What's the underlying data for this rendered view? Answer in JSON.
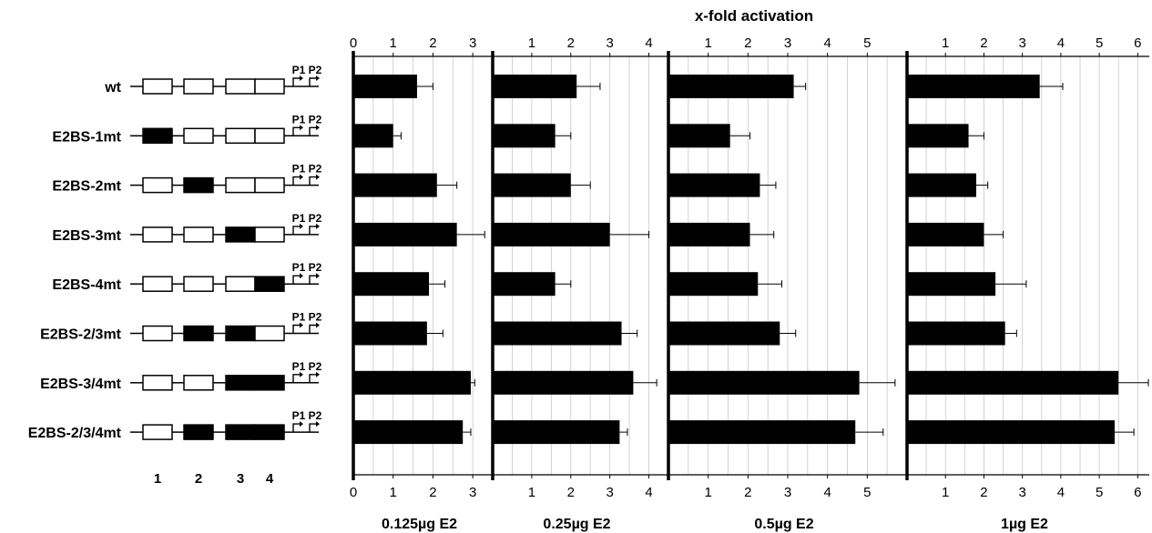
{
  "chart_data": {
    "type": "bar",
    "orientation": "horizontal",
    "xlabel": "x-fold activation",
    "promoter_labels": [
      "P1",
      "P2"
    ],
    "site_numbers": [
      "1",
      "2",
      "3",
      "4"
    ],
    "categories": [
      "wt",
      "E2BS-1mt",
      "E2BS-2mt",
      "E2BS-3mt",
      "E2BS-4mt",
      "E2BS-2/3mt",
      "E2BS-3/4mt",
      "E2BS-2/3/4mt"
    ],
    "mutated_sites": [
      [],
      [
        1
      ],
      [
        2
      ],
      [
        3
      ],
      [
        4
      ],
      [
        2,
        3
      ],
      [
        3,
        4
      ],
      [
        2,
        3,
        4
      ]
    ],
    "panels": [
      {
        "title": "0.125µg E2",
        "xlim": [
          0,
          3.5
        ],
        "ticks": [
          "0",
          "1",
          "2",
          "3"
        ],
        "bottom_ticks": [
          "0",
          "1",
          "2",
          "3"
        ],
        "values": [
          1.6,
          1.0,
          2.1,
          2.6,
          1.9,
          1.85,
          2.95,
          2.75
        ],
        "errors": [
          0.4,
          0.2,
          0.5,
          0.7,
          0.4,
          0.4,
          0.1,
          0.2
        ]
      },
      {
        "title": "0.25µg E2",
        "xlim": [
          0,
          4.5
        ],
        "ticks": [
          "1",
          "2",
          "3",
          "4"
        ],
        "bottom_ticks": [
          "1",
          "2",
          "3",
          "4"
        ],
        "values": [
          2.15,
          1.6,
          2.0,
          3.0,
          1.6,
          3.3,
          3.6,
          3.25
        ],
        "errors": [
          0.6,
          0.4,
          0.5,
          1.0,
          0.4,
          0.4,
          0.6,
          0.2
        ]
      },
      {
        "title": "0.5µg E2",
        "xlim": [
          0,
          6.0
        ],
        "ticks": [
          "1",
          "2",
          "3",
          "4",
          "5"
        ],
        "bottom_ticks": [
          "1",
          "2",
          "3",
          "4",
          "5"
        ],
        "values": [
          3.15,
          1.55,
          2.3,
          2.05,
          2.25,
          2.8,
          4.8,
          4.7
        ],
        "errors": [
          0.3,
          0.5,
          0.4,
          0.6,
          0.6,
          0.4,
          0.9,
          0.7
        ]
      },
      {
        "title": "1µg E2",
        "xlim": [
          0,
          6.3
        ],
        "ticks": [
          "1",
          "2",
          "3",
          "4",
          "5",
          "6"
        ],
        "bottom_ticks": [
          "1",
          "2",
          "3",
          "4",
          "5",
          "6"
        ],
        "values": [
          3.45,
          1.6,
          1.8,
          2.0,
          2.3,
          2.55,
          5.5,
          5.4
        ],
        "errors": [
          0.6,
          0.4,
          0.3,
          0.5,
          0.8,
          0.3,
          0.8,
          0.5
        ]
      }
    ]
  }
}
